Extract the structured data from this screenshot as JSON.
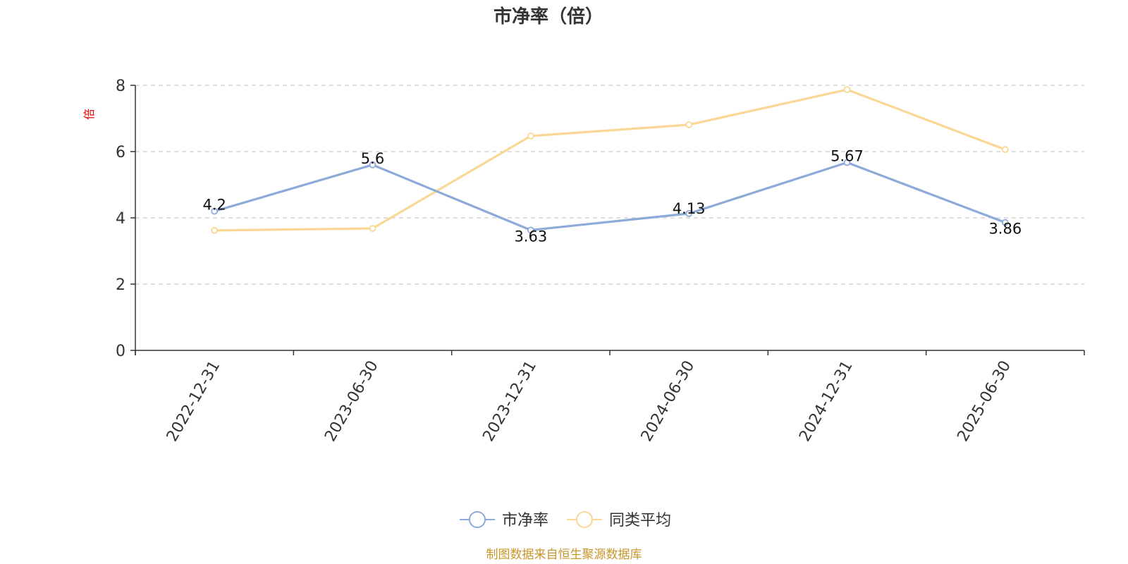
{
  "chart_data": {
    "type": "line",
    "title": "市净率（倍）",
    "ylabel": "倍",
    "xlabel": "",
    "categories": [
      "2022-12-31",
      "2023-06-30",
      "2023-12-31",
      "2024-06-30",
      "2024-12-31",
      "2025-06-30"
    ],
    "ylim": [
      0,
      8
    ],
    "yticks": [
      0,
      2,
      4,
      6,
      8
    ],
    "grid": true,
    "legend_position": "bottom-center",
    "series": [
      {
        "name": "市净率",
        "values": [
          4.2,
          5.6,
          3.63,
          4.13,
          5.67,
          3.86
        ],
        "labels": [
          "4.2",
          "5.6",
          "3.63",
          "4.13",
          "5.67",
          "3.86"
        ],
        "color": "#8eaad8"
      },
      {
        "name": "同类平均",
        "values": [
          3.62,
          3.68,
          6.47,
          6.81,
          7.87,
          6.06
        ],
        "color": "#fbd795"
      }
    ]
  },
  "source_note": "制图数据来自恒生聚源数据库"
}
